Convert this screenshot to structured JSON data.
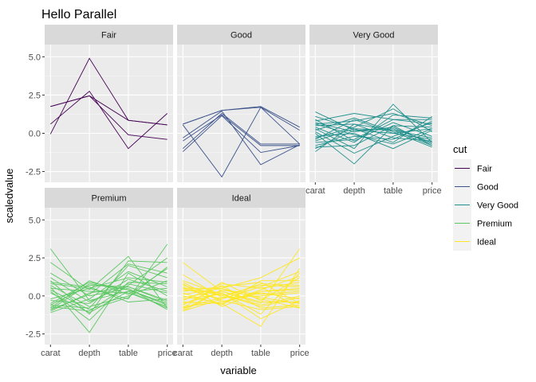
{
  "chart_data": {
    "type": "line",
    "title": "Hello Parallel",
    "xlabel": "variable",
    "ylabel": "scaledvalue",
    "categories": [
      "carat",
      "depth",
      "table",
      "price"
    ],
    "ylim": [
      -3.2,
      5.8
    ],
    "yticks": [
      -2.5,
      0.0,
      2.5,
      5.0
    ],
    "ytick_labels": [
      "-2.5",
      "0.0",
      "2.5",
      "5.0"
    ],
    "grid": true,
    "facet_by": "cut",
    "legend": {
      "title": "cut",
      "placement": "right"
    },
    "series": [
      {
        "name": "Fair",
        "color": "#440154",
        "lines": [
          [
            -0.05,
            4.9,
            0.85,
            0.55
          ],
          [
            1.75,
            2.45,
            0.85,
            0.55
          ],
          [
            0.6,
            2.75,
            -1.0,
            1.3
          ],
          [
            1.75,
            2.45,
            -0.1,
            -0.4
          ]
        ]
      },
      {
        "name": "Good",
        "color": "#3B528B",
        "lines": [
          [
            0.6,
            1.5,
            1.75,
            0.4
          ],
          [
            0.6,
            1.5,
            1.7,
            0.2
          ],
          [
            -0.5,
            1.2,
            -0.8,
            -0.8
          ],
          [
            -1.0,
            1.3,
            -0.7,
            -0.7
          ],
          [
            -1.2,
            1.15,
            -1.25,
            -0.8
          ],
          [
            0.55,
            -2.85,
            1.7,
            -0.7
          ],
          [
            -0.3,
            1.45,
            -2.05,
            -0.75
          ]
        ]
      },
      {
        "name": "Very Good",
        "color": "#21908C",
        "lines": [
          [
            1.4,
            0.2,
            0.0,
            0.3
          ],
          [
            0.8,
            1.3,
            0.9,
            0.9
          ],
          [
            0.6,
            0.8,
            1.3,
            0.5
          ],
          [
            0.3,
            -1.0,
            1.9,
            -0.6
          ],
          [
            0.0,
            -2.0,
            0.5,
            0.4
          ],
          [
            -0.5,
            0.3,
            -0.6,
            1.1
          ],
          [
            -0.9,
            -0.8,
            0.5,
            -0.8
          ],
          [
            -1.2,
            0.6,
            0.2,
            -0.3
          ],
          [
            0.7,
            0.1,
            0.4,
            -0.7
          ],
          [
            0.4,
            -0.6,
            1.2,
            1.0
          ],
          [
            -0.2,
            0.0,
            -1.0,
            0.2
          ],
          [
            0.5,
            0.6,
            -0.3,
            -0.5
          ],
          [
            -0.6,
            -0.4,
            0.9,
            0.6
          ],
          [
            0.2,
            1.0,
            0.1,
            -0.9
          ],
          [
            -0.8,
            -0.2,
            -0.4,
            0.8
          ],
          [
            0.9,
            -0.5,
            0.7,
            -0.2
          ],
          [
            -0.3,
            0.4,
            1.6,
            0.1
          ],
          [
            0.1,
            -1.3,
            -0.2,
            0.7
          ],
          [
            -1.0,
            0.2,
            0.3,
            -0.6
          ],
          [
            0.6,
            -0.1,
            -0.7,
            0.3
          ],
          [
            -0.4,
            0.9,
            0.0,
            -0.4
          ],
          [
            1.1,
            0.3,
            0.2,
            -0.8
          ]
        ]
      },
      {
        "name": "Premium",
        "color": "#5DC863",
        "lines": [
          [
            3.1,
            -0.3,
            0.3,
            0.5
          ],
          [
            2.2,
            0.4,
            2.6,
            -0.8
          ],
          [
            1.0,
            -1.2,
            2.3,
            2.2
          ],
          [
            0.8,
            0.5,
            -0.2,
            3.4
          ],
          [
            0.6,
            -2.4,
            1.5,
            0.0
          ],
          [
            -0.9,
            0.8,
            0.4,
            -0.6
          ],
          [
            -0.6,
            -0.8,
            2.0,
            1.2
          ],
          [
            -1.0,
            0.2,
            0.6,
            -0.4
          ],
          [
            0.3,
            -1.6,
            0.9,
            0.8
          ],
          [
            -0.8,
            1.0,
            0.1,
            1.8
          ],
          [
            1.5,
            0.0,
            0.5,
            -0.9
          ],
          [
            -0.3,
            -0.5,
            1.1,
            0.3
          ],
          [
            0.9,
            0.6,
            -0.4,
            -0.2
          ],
          [
            -0.7,
            -1.0,
            0.7,
            2.5
          ],
          [
            0.5,
            0.3,
            0.2,
            -0.7
          ],
          [
            -1.1,
            -0.2,
            1.6,
            0.6
          ],
          [
            0.7,
            -0.7,
            0.0,
            1.0
          ],
          [
            -0.5,
            0.9,
            0.4,
            -0.5
          ],
          [
            1.2,
            -0.4,
            0.8,
            0.2
          ],
          [
            -0.9,
            0.1,
            2.1,
            1.5
          ],
          [
            0.2,
            -1.1,
            0.3,
            -0.8
          ],
          [
            -0.2,
            0.5,
            1.2,
            0.9
          ],
          [
            0.4,
            -0.9,
            -0.1,
            1.9
          ],
          [
            -0.6,
            0.7,
            0.6,
            -0.3
          ]
        ]
      },
      {
        "name": "Ideal",
        "color": "#FDE725",
        "lines": [
          [
            2.2,
            0.3,
            -0.5,
            3.1
          ],
          [
            0.5,
            0.5,
            1.2,
            2.5
          ],
          [
            0.0,
            -0.5,
            -2.0,
            1.8
          ],
          [
            -0.8,
            0.9,
            -0.3,
            1.2
          ],
          [
            -1.0,
            -0.2,
            0.6,
            -0.8
          ],
          [
            0.8,
            -0.7,
            0.3,
            0.5
          ],
          [
            -0.5,
            0.2,
            -1.2,
            1.5
          ],
          [
            0.3,
            0.6,
            0.9,
            -0.5
          ],
          [
            -0.7,
            -0.4,
            0.2,
            -0.2
          ],
          [
            1.0,
            0.1,
            -0.6,
            0.0
          ],
          [
            -0.3,
            0.8,
            0.5,
            0.9
          ],
          [
            0.6,
            -0.3,
            -0.9,
            -0.7
          ],
          [
            -0.9,
            0.4,
            0.1,
            0.3
          ],
          [
            0.2,
            -0.6,
            1.0,
            1.0
          ],
          [
            -0.1,
            0.3,
            -0.4,
            -0.4
          ],
          [
            0.7,
            0.0,
            0.7,
            0.6
          ],
          [
            -0.6,
            0.7,
            -0.8,
            -0.6
          ],
          [
            1.4,
            -0.1,
            0.0,
            0.2
          ],
          [
            -0.4,
            -0.5,
            0.4,
            1.3
          ],
          [
            0.4,
            0.2,
            -1.5,
            -0.3
          ],
          [
            -0.8,
            -0.1,
            0.8,
            0.7
          ],
          [
            0.1,
            0.5,
            -0.2,
            -0.8
          ],
          [
            0.9,
            -0.4,
            0.3,
            0.4
          ],
          [
            -0.2,
            0.1,
            -0.7,
            -0.1
          ],
          [
            0.5,
            -0.2,
            0.6,
            1.6
          ],
          [
            -1.0,
            0.4,
            -0.1,
            -0.5
          ]
        ]
      }
    ]
  }
}
